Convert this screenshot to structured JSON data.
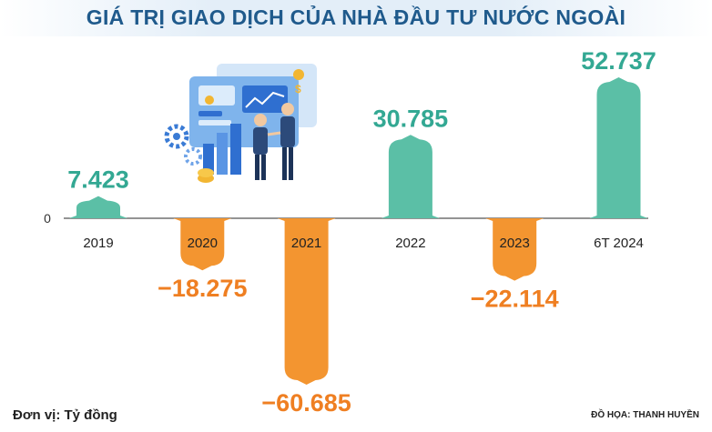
{
  "header": {
    "title": "GIÁ TRỊ GIAO DỊCH CỦA NHÀ ĐẦU TƯ NƯỚC NGOÀI"
  },
  "footer": {
    "unit": "Đơn vị: Tỷ đồng",
    "credit": "ĐỒ HỌA: THANH HUYỀN"
  },
  "colors": {
    "positive": "#5bbfa6",
    "negative": "#f39530",
    "positive_text": "#33a893",
    "negative_text": "#ef7f22",
    "title": "#1f5a8c"
  },
  "illustration": {
    "icon": "business-handshake-illustration"
  },
  "chart_data": {
    "type": "bar",
    "categories": [
      "2019",
      "2020",
      "2021",
      "2022",
      "2023",
      "6T 2024"
    ],
    "values": [
      7423,
      -18275,
      -60685,
      30785,
      -22114,
      52737
    ],
    "value_labels": [
      "7.423",
      "−18.275",
      "−60.685",
      "30.785",
      "−22.114",
      "52.737"
    ],
    "y_tick_labels": [
      "0"
    ],
    "title": "GIÁ TRỊ GIAO DỊCH CỦA NHÀ ĐẦU TƯ NƯỚC NGOÀI",
    "ylabel": "",
    "xlabel": ""
  }
}
